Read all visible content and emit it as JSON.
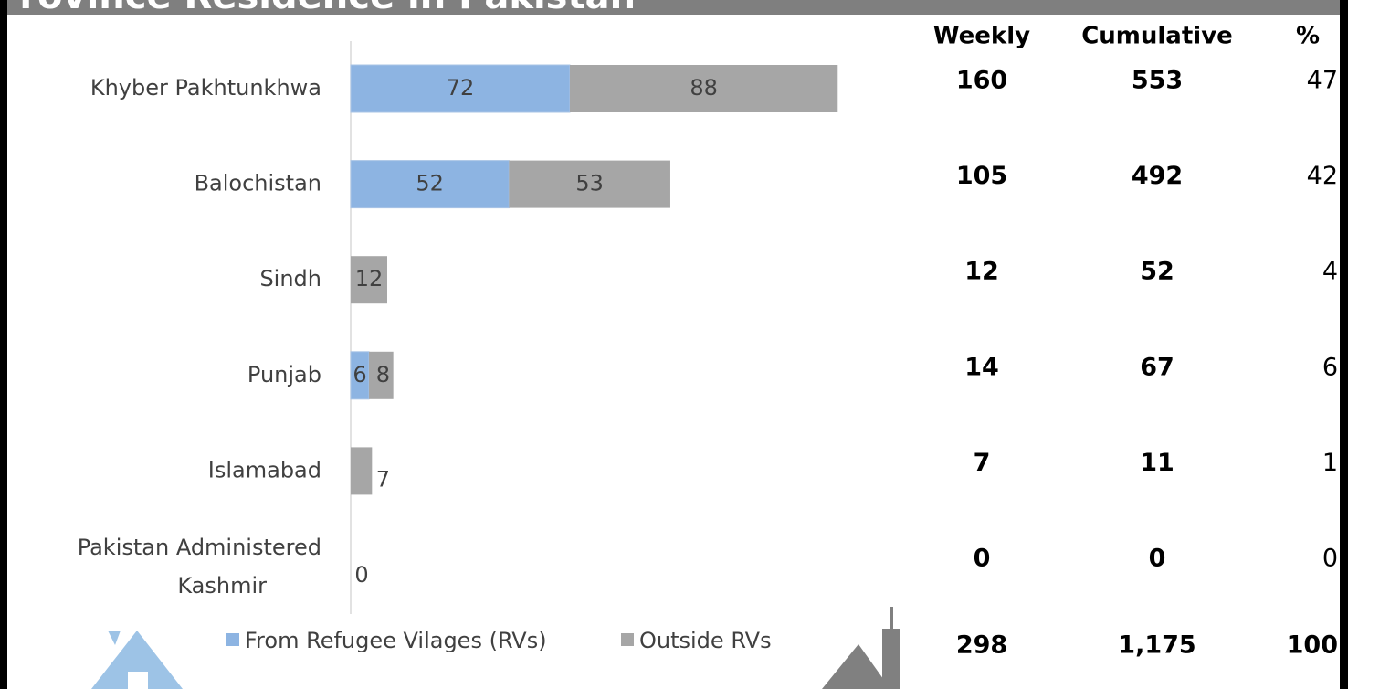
{
  "chart_data": {
    "type": "bar",
    "orientation": "horizontal",
    "stacked": true,
    "title": "Province Residence in Pakistan",
    "categories": [
      "Khyber Pakhtunkhwa",
      "Balochistan",
      "Sindh",
      "Punjab",
      "Islamabad",
      "Pakistan Administered Kashmir"
    ],
    "series": [
      {
        "name": "From Refugee Vilages (RVs)",
        "color": "#8db4e2",
        "values": [
          72,
          52,
          null,
          6,
          null,
          null
        ]
      },
      {
        "name": "Outside RVs",
        "color": "#a6a6a6",
        "values": [
          88,
          53,
          12,
          8,
          7,
          0
        ]
      }
    ],
    "legend": "bottom"
  },
  "table": {
    "headers": [
      "Weekly",
      "Cumulative",
      "%"
    ],
    "rows": [
      [
        160,
        553,
        47
      ],
      [
        105,
        492,
        42
      ],
      [
        12,
        52,
        4
      ],
      [
        14,
        67,
        6
      ],
      [
        7,
        11,
        1
      ],
      [
        0,
        0,
        0
      ]
    ],
    "total": [
      298,
      "1,175",
      100
    ]
  }
}
